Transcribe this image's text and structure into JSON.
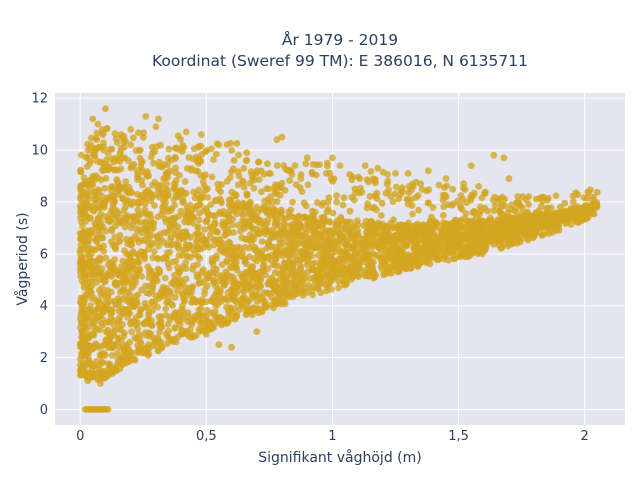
{
  "chart_data": {
    "type": "scatter",
    "title_lines": [
      "År 1979 - 2019",
      "Koordinat (Sweref 99 TM): E 386016, N 6135711"
    ],
    "xlabel": "Signifikant våghöjd (m)",
    "ylabel": "Vågperiod (s)",
    "xlim": [
      -0.1,
      2.16
    ],
    "ylim": [
      -0.6,
      12.2
    ],
    "x_ticks": [
      0,
      0.5,
      1,
      1.5,
      2
    ],
    "x_tick_labels": [
      "0",
      "0,5",
      "1",
      "1,5",
      "2"
    ],
    "y_ticks": [
      0,
      2,
      4,
      6,
      8,
      10,
      12
    ],
    "y_tick_labels": [
      "0",
      "2",
      "4",
      "6",
      "8",
      "10",
      "12"
    ],
    "grid": true,
    "legend": "none",
    "marker_color": "#d4a520",
    "plot_background": "#e5e5ef",
    "envelope": {
      "x": [
        0.0,
        0.05,
        0.1,
        0.15,
        0.2,
        0.3,
        0.4,
        0.5,
        0.6,
        0.7,
        0.8,
        0.9,
        1.0,
        1.1,
        1.2,
        1.3,
        1.4,
        1.5,
        1.6,
        1.7,
        1.8,
        1.9,
        2.0,
        2.05
      ],
      "y_low": [
        1.3,
        1.1,
        1.2,
        1.5,
        1.8,
        2.2,
        2.6,
        3.0,
        3.4,
        3.7,
        4.0,
        4.3,
        4.6,
        4.9,
        5.1,
        5.4,
        5.6,
        5.8,
        6.0,
        6.3,
        6.6,
        6.9,
        7.3,
        7.6
      ],
      "y_high": [
        9.8,
        10.6,
        10.9,
        10.6,
        10.7,
        10.8,
        10.6,
        10.2,
        10.5,
        9.6,
        9.4,
        9.6,
        9.4,
        9.3,
        9.2,
        9.0,
        8.8,
        8.6,
        8.5,
        8.3,
        8.2,
        8.3,
        8.4,
        8.7
      ]
    },
    "density": {
      "x": [
        0.0,
        0.05,
        0.1,
        0.15,
        0.2,
        0.3,
        0.4,
        0.5,
        0.6,
        0.7,
        0.8,
        0.9,
        1.0,
        1.1,
        1.2,
        1.3,
        1.4,
        1.5,
        1.6,
        1.7,
        1.8,
        1.9,
        2.0,
        2.05
      ],
      "y_low": [
        1.5,
        1.4,
        1.5,
        1.8,
        2.2,
        2.6,
        3.0,
        3.4,
        3.8,
        4.1,
        4.5,
        4.8,
        5.0,
        5.3,
        5.5,
        5.7,
        5.9,
        6.1,
        6.3,
        6.6,
        6.9,
        7.2,
        7.5,
        7.8
      ],
      "y_high": [
        8.6,
        9.0,
        9.4,
        9.2,
        9.1,
        9.0,
        8.6,
        8.3,
        8.1,
        7.9,
        7.7,
        7.5,
        7.4,
        7.3,
        7.2,
        7.2,
        7.3,
        7.3,
        7.3,
        7.4,
        7.5,
        7.6,
        7.8,
        8.0
      ]
    },
    "zero_points": {
      "x_range": [
        0.02,
        0.11
      ],
      "y": 0
    },
    "outliers": [
      [
        0.1,
        11.6
      ],
      [
        0.05,
        11.2
      ],
      [
        0.07,
        11.0
      ],
      [
        0.26,
        11.3
      ],
      [
        0.31,
        11.2
      ],
      [
        0.2,
        10.8
      ],
      [
        0.3,
        10.9
      ],
      [
        0.42,
        10.7
      ],
      [
        0.48,
        10.6
      ],
      [
        0.55,
        10.2
      ],
      [
        0.61,
        9.6
      ],
      [
        0.66,
        9.9
      ],
      [
        0.78,
        10.4
      ],
      [
        0.8,
        10.5
      ],
      [
        0.9,
        9.7
      ],
      [
        1.0,
        9.7
      ],
      [
        0.98,
        9.5
      ],
      [
        1.03,
        9.4
      ],
      [
        1.13,
        9.4
      ],
      [
        1.18,
        9.3
      ],
      [
        1.25,
        9.1
      ],
      [
        1.3,
        9.1
      ],
      [
        1.38,
        9.2
      ],
      [
        1.45,
        8.9
      ],
      [
        1.55,
        9.4
      ],
      [
        1.64,
        9.8
      ],
      [
        1.68,
        9.7
      ],
      [
        1.52,
        8.7
      ],
      [
        1.7,
        8.9
      ],
      [
        1.58,
        8.6
      ],
      [
        1.35,
        8.7
      ],
      [
        1.22,
        8.8
      ],
      [
        0.55,
        2.5
      ],
      [
        0.6,
        2.4
      ],
      [
        0.45,
        2.8
      ],
      [
        0.38,
        2.6
      ],
      [
        0.7,
        3.0
      ],
      [
        0.5,
        2.9
      ],
      [
        0.0,
        1.5
      ],
      [
        0.01,
        1.4
      ],
      [
        0.03,
        1.1
      ],
      [
        0.08,
        1.0
      ]
    ]
  }
}
